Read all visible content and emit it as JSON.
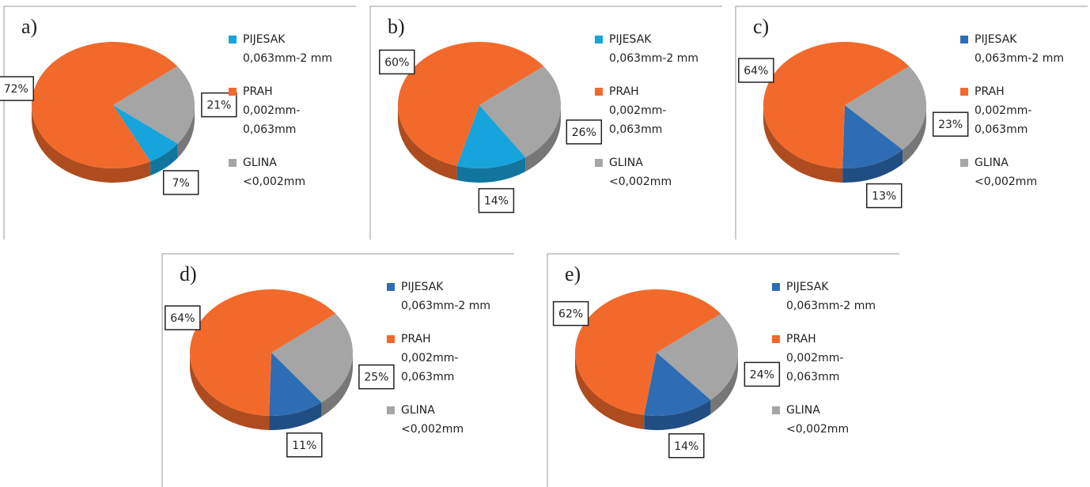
{
  "chart_data": [
    {
      "type": "pie",
      "title": "a)",
      "categories": [
        [
          "PIJESAK",
          "0,063mm-2 mm"
        ],
        [
          "PRAH",
          "0,002mm-",
          "0,063mm"
        ],
        [
          "GLINA",
          "<0,002mm"
        ]
      ],
      "values": [
        7,
        72,
        21
      ],
      "value_labels": [
        "7%",
        "72%",
        "21%"
      ],
      "colors": [
        "#17a3dc",
        "#f26a2b",
        "#a5a5a5"
      ]
    },
    {
      "type": "pie",
      "title": "b)",
      "categories": [
        [
          "PIJESAK",
          "0,063mm-2 mm"
        ],
        [
          "PRAH",
          "0,002mm-",
          "0,063mm"
        ],
        [
          "GLINA",
          "<0,002mm"
        ]
      ],
      "values": [
        14,
        60,
        26
      ],
      "value_labels": [
        "14%",
        "60%",
        "26%"
      ],
      "colors": [
        "#17a3dc",
        "#f26a2b",
        "#a5a5a5"
      ]
    },
    {
      "type": "pie",
      "title": "c)",
      "categories": [
        [
          "PIJESAK",
          "0,063mm-2 mm"
        ],
        [
          "PRAH",
          "0,002mm-",
          "0,063mm"
        ],
        [
          "GLINA",
          "<0,002mm"
        ]
      ],
      "values": [
        13,
        64,
        23
      ],
      "value_labels": [
        "13%",
        "64%",
        "23%"
      ],
      "colors": [
        "#2e6db4",
        "#f26a2b",
        "#a5a5a5"
      ]
    },
    {
      "type": "pie",
      "title": "d)",
      "categories": [
        [
          "PIJESAK",
          "0,063mm-2 mm"
        ],
        [
          "PRAH",
          "0,002mm-",
          "0,063mm"
        ],
        [
          "GLINA",
          "<0,002mm"
        ]
      ],
      "values": [
        11,
        64,
        25
      ],
      "value_labels": [
        "11%",
        "64%",
        "25%"
      ],
      "colors": [
        "#2e6db4",
        "#f26a2b",
        "#a5a5a5"
      ]
    },
    {
      "type": "pie",
      "title": "e)",
      "categories": [
        [
          "PIJESAK",
          "0,063mm-2 mm"
        ],
        [
          "PRAH",
          "0,002mm-",
          "0,063mm"
        ],
        [
          "GLINA",
          "<0,002mm"
        ]
      ],
      "values": [
        14,
        62,
        24
      ],
      "value_labels": [
        "14%",
        "62%",
        "24%"
      ],
      "colors": [
        "#2e6db4",
        "#f26a2b",
        "#a5a5a5"
      ]
    }
  ]
}
